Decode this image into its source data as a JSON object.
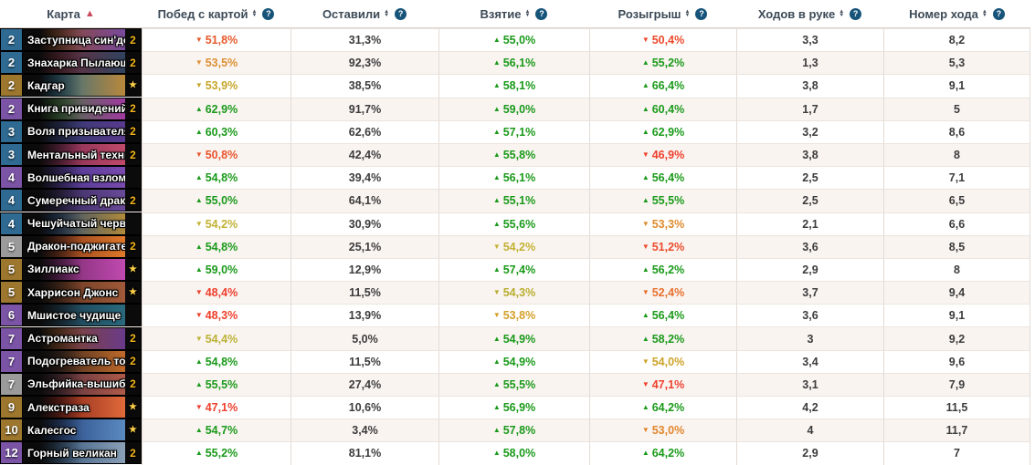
{
  "icons": {
    "up": "▲",
    "down": "▼",
    "star": "★",
    "help": "?",
    "sort_asc": "▲",
    "sort_both_up": "▲",
    "sort_both_down": "▼"
  },
  "colors": {
    "positive": "#1a9a1a",
    "neutral": "#3c3c3c",
    "header_text": "#3c4a57",
    "sort_active": "#c94a59",
    "help_bg": "#17547a",
    "count_gold": "#f5b81c",
    "star_gold": "#ffd24a",
    "rarity": {
      "common": "#9b9b9b",
      "rare": "#2f6a92",
      "epic": "#7b54a6",
      "legendary": "#9e772e"
    }
  },
  "table": {
    "columns": [
      {
        "label": "Карта",
        "sorted": "asc"
      },
      {
        "label": "Побед с картой",
        "help": true
      },
      {
        "label": "Оставили",
        "help": true
      },
      {
        "label": "Взятие",
        "help": true
      },
      {
        "label": "Розыгрыш",
        "help": true
      },
      {
        "label": "Ходов в руке",
        "help": true
      },
      {
        "label": "Номер хода",
        "help": true
      }
    ],
    "rows": [
      {
        "card": {
          "cost": "2",
          "name": "Заступница син'дорай",
          "rarity": "rare",
          "count": "2",
          "art": [
            "#8a4a28",
            "#7a4a9e"
          ]
        },
        "stats": [
          {
            "v": "51,8%",
            "d": "down",
            "c": "#e55a2b"
          },
          {
            "v": "31,3%",
            "d": "none"
          },
          {
            "v": "55,0%",
            "d": "up"
          },
          {
            "v": "50,4%",
            "d": "down",
            "c": "#ec4a2b"
          },
          {
            "v": "3,3",
            "d": "none"
          },
          {
            "v": "8,2",
            "d": "none"
          }
        ]
      },
      {
        "card": {
          "cost": "2",
          "name": "Знахарка Пылающег...",
          "rarity": "rare",
          "count": "2",
          "art": [
            "#6e2b38",
            "#31435f"
          ]
        },
        "stats": [
          {
            "v": "53,5%",
            "d": "down",
            "c": "#dc9032"
          },
          {
            "v": "92,3%",
            "d": "none"
          },
          {
            "v": "56,1%",
            "d": "up"
          },
          {
            "v": "55,2%",
            "d": "up"
          },
          {
            "v": "1,3",
            "d": "none"
          },
          {
            "v": "5,3",
            "d": "none"
          }
        ]
      },
      {
        "card": {
          "cost": "2",
          "name": "Кадгар",
          "rarity": "legendary",
          "count": "star",
          "art": [
            "#2e6b88",
            "#b9883c"
          ]
        },
        "stats": [
          {
            "v": "53,9%",
            "d": "down",
            "c": "#c6a62a"
          },
          {
            "v": "38,5%",
            "d": "none"
          },
          {
            "v": "58,1%",
            "d": "up"
          },
          {
            "v": "66,4%",
            "d": "up"
          },
          {
            "v": "3,8",
            "d": "none"
          },
          {
            "v": "9,1",
            "d": "none"
          }
        ]
      },
      {
        "card": {
          "cost": "2",
          "name": "Книга привидений",
          "rarity": "epic",
          "count": "2",
          "art": [
            "#3f7a3a",
            "#a03aa0"
          ]
        },
        "stats": [
          {
            "v": "62,9%",
            "d": "up"
          },
          {
            "v": "91,7%",
            "d": "none"
          },
          {
            "v": "59,0%",
            "d": "up"
          },
          {
            "v": "60,4%",
            "d": "up"
          },
          {
            "v": "1,7",
            "d": "none"
          },
          {
            "v": "5",
            "d": "none"
          }
        ]
      },
      {
        "card": {
          "cost": "3",
          "name": "Воля призывателя",
          "rarity": "rare",
          "count": "2",
          "art": [
            "#2c3a68",
            "#5a3a8e"
          ]
        },
        "stats": [
          {
            "v": "60,3%",
            "d": "up"
          },
          {
            "v": "62,6%",
            "d": "none"
          },
          {
            "v": "57,1%",
            "d": "up"
          },
          {
            "v": "62,9%",
            "d": "up"
          },
          {
            "v": "3,2",
            "d": "none"
          },
          {
            "v": "8,6",
            "d": "none"
          }
        ]
      },
      {
        "card": {
          "cost": "3",
          "name": "Ментальный техник",
          "rarity": "rare",
          "count": "2",
          "art": [
            "#7e2c50",
            "#c04a6a"
          ]
        },
        "stats": [
          {
            "v": "50,8%",
            "d": "down",
            "c": "#e8552e"
          },
          {
            "v": "42,4%",
            "d": "none"
          },
          {
            "v": "55,8%",
            "d": "up"
          },
          {
            "v": "46,9%",
            "d": "down",
            "c": "#ee3f2c"
          },
          {
            "v": "3,8",
            "d": "none"
          },
          {
            "v": "8",
            "d": "none"
          }
        ]
      },
      {
        "card": {
          "cost": "4",
          "name": "Волшебная взломщица",
          "rarity": "epic",
          "count": "",
          "art": [
            "#46358a",
            "#7a4ab0"
          ]
        },
        "stats": [
          {
            "v": "54,8%",
            "d": "up"
          },
          {
            "v": "39,4%",
            "d": "none"
          },
          {
            "v": "56,1%",
            "d": "up"
          },
          {
            "v": "56,4%",
            "d": "up"
          },
          {
            "v": "2,5",
            "d": "none"
          },
          {
            "v": "7,1",
            "d": "none"
          }
        ]
      },
      {
        "card": {
          "cost": "4",
          "name": "Сумеречный дракон",
          "rarity": "rare",
          "count": "2",
          "art": [
            "#352a58",
            "#6a4a9a"
          ]
        },
        "stats": [
          {
            "v": "55,0%",
            "d": "up"
          },
          {
            "v": "64,1%",
            "d": "none"
          },
          {
            "v": "55,1%",
            "d": "up"
          },
          {
            "v": "55,5%",
            "d": "up"
          },
          {
            "v": "2,5",
            "d": "none"
          },
          {
            "v": "6,5",
            "d": "none"
          }
        ]
      },
      {
        "card": {
          "cost": "4",
          "name": "Чешуйчатый червь",
          "rarity": "rare",
          "count": "",
          "art": [
            "#2a4a78",
            "#b08a3a"
          ]
        },
        "stats": [
          {
            "v": "54,2%",
            "d": "down",
            "c": "#c2b233"
          },
          {
            "v": "30,9%",
            "d": "none"
          },
          {
            "v": "55,6%",
            "d": "up"
          },
          {
            "v": "53,3%",
            "d": "down",
            "c": "#de8b2e"
          },
          {
            "v": "2,1",
            "d": "none"
          },
          {
            "v": "6,6",
            "d": "none"
          }
        ]
      },
      {
        "card": {
          "cost": "5",
          "name": "Дракон-поджигатель",
          "rarity": "common",
          "count": "2",
          "art": [
            "#84361d",
            "#e07a2a"
          ]
        },
        "stats": [
          {
            "v": "54,8%",
            "d": "up"
          },
          {
            "v": "25,1%",
            "d": "none"
          },
          {
            "v": "54,2%",
            "d": "down",
            "c": "#c2b233"
          },
          {
            "v": "51,2%",
            "d": "down",
            "c": "#eb4c2b"
          },
          {
            "v": "3,6",
            "d": "none"
          },
          {
            "v": "8,5",
            "d": "none"
          }
        ]
      },
      {
        "card": {
          "cost": "5",
          "name": "Зиллиакс",
          "rarity": "legendary",
          "count": "star",
          "art": [
            "#75296a",
            "#c04ab0"
          ]
        },
        "stats": [
          {
            "v": "59,0%",
            "d": "up"
          },
          {
            "v": "12,9%",
            "d": "none"
          },
          {
            "v": "57,4%",
            "d": "up"
          },
          {
            "v": "56,2%",
            "d": "up"
          },
          {
            "v": "2,9",
            "d": "none"
          },
          {
            "v": "8",
            "d": "none"
          }
        ]
      },
      {
        "card": {
          "cost": "5",
          "name": "Харрисон Джонс",
          "rarity": "legendary",
          "count": "star",
          "art": [
            "#63351f",
            "#a05a3a"
          ]
        },
        "stats": [
          {
            "v": "48,4%",
            "d": "down",
            "c": "#ee3f2c"
          },
          {
            "v": "11,5%",
            "d": "none"
          },
          {
            "v": "54,3%",
            "d": "down",
            "c": "#b9ad30"
          },
          {
            "v": "52,4%",
            "d": "down",
            "c": "#e7712d"
          },
          {
            "v": "3,7",
            "d": "none"
          },
          {
            "v": "9,4",
            "d": "none"
          }
        ]
      },
      {
        "card": {
          "cost": "6",
          "name": "Мшистое чудище",
          "rarity": "epic",
          "count": "",
          "art": [
            "#1d3a4c",
            "#2a6a7e"
          ]
        },
        "stats": [
          {
            "v": "48,3%",
            "d": "down",
            "c": "#ee3f2c"
          },
          {
            "v": "13,9%",
            "d": "none"
          },
          {
            "v": "53,8%",
            "d": "down",
            "c": "#d5a02b"
          },
          {
            "v": "56,4%",
            "d": "up"
          },
          {
            "v": "3,6",
            "d": "none"
          },
          {
            "v": "9,1",
            "d": "none"
          }
        ]
      },
      {
        "card": {
          "cost": "7",
          "name": "Астромантка",
          "rarity": "epic",
          "count": "2",
          "art": [
            "#84481f",
            "#6a3a8a"
          ]
        },
        "stats": [
          {
            "v": "54,4%",
            "d": "down",
            "c": "#bcb236"
          },
          {
            "v": "5,0%",
            "d": "none"
          },
          {
            "v": "54,9%",
            "d": "up"
          },
          {
            "v": "58,2%",
            "d": "up"
          },
          {
            "v": "3",
            "d": "none"
          },
          {
            "v": "9,2",
            "d": "none"
          }
        ]
      },
      {
        "card": {
          "cost": "7",
          "name": "Подогреватель толпы",
          "rarity": "epic",
          "count": "2",
          "art": [
            "#35231e",
            "#c06a2a"
          ]
        },
        "stats": [
          {
            "v": "54,8%",
            "d": "up"
          },
          {
            "v": "11,5%",
            "d": "none"
          },
          {
            "v": "54,9%",
            "d": "up"
          },
          {
            "v": "54,0%",
            "d": "down",
            "c": "#cda42a"
          },
          {
            "v": "3,4",
            "d": "none"
          },
          {
            "v": "9,6",
            "d": "none"
          }
        ]
      },
      {
        "card": {
          "cost": "7",
          "name": "Эльфийка-вышибала",
          "rarity": "common",
          "count": "2",
          "art": [
            "#54303c",
            "#b05a4a"
          ]
        },
        "stats": [
          {
            "v": "55,5%",
            "d": "up"
          },
          {
            "v": "27,4%",
            "d": "none"
          },
          {
            "v": "55,5%",
            "d": "up"
          },
          {
            "v": "47,1%",
            "d": "down",
            "c": "#ee3f2c"
          },
          {
            "v": "3,1",
            "d": "none"
          },
          {
            "v": "7,9",
            "d": "none"
          }
        ]
      },
      {
        "card": {
          "cost": "9",
          "name": "Алекстраза",
          "rarity": "legendary",
          "count": "star",
          "art": [
            "#801f16",
            "#e06a3a"
          ]
        },
        "stats": [
          {
            "v": "47,1%",
            "d": "down",
            "c": "#ee3f2c"
          },
          {
            "v": "10,6%",
            "d": "none"
          },
          {
            "v": "56,9%",
            "d": "up"
          },
          {
            "v": "64,2%",
            "d": "up"
          },
          {
            "v": "4,2",
            "d": "none"
          },
          {
            "v": "11,5",
            "d": "none"
          }
        ]
      },
      {
        "card": {
          "cost": "10",
          "name": "Калесгос",
          "rarity": "legendary",
          "count": "star",
          "art": [
            "#27457f",
            "#5a8ac0"
          ]
        },
        "stats": [
          {
            "v": "54,7%",
            "d": "up"
          },
          {
            "v": "3,4%",
            "d": "none"
          },
          {
            "v": "57,8%",
            "d": "up"
          },
          {
            "v": "53,0%",
            "d": "down",
            "c": "#e1862c"
          },
          {
            "v": "4",
            "d": "none"
          },
          {
            "v": "11,7",
            "d": "none"
          }
        ]
      },
      {
        "card": {
          "cost": "12",
          "name": "Горный великан",
          "rarity": "epic",
          "count": "2",
          "art": [
            "#35567a",
            "#8aa0b8"
          ]
        },
        "stats": [
          {
            "v": "55,2%",
            "d": "up"
          },
          {
            "v": "81,1%",
            "d": "none"
          },
          {
            "v": "58,0%",
            "d": "up"
          },
          {
            "v": "64,2%",
            "d": "up"
          },
          {
            "v": "2,9",
            "d": "none"
          },
          {
            "v": "7",
            "d": "none"
          }
        ]
      }
    ]
  }
}
